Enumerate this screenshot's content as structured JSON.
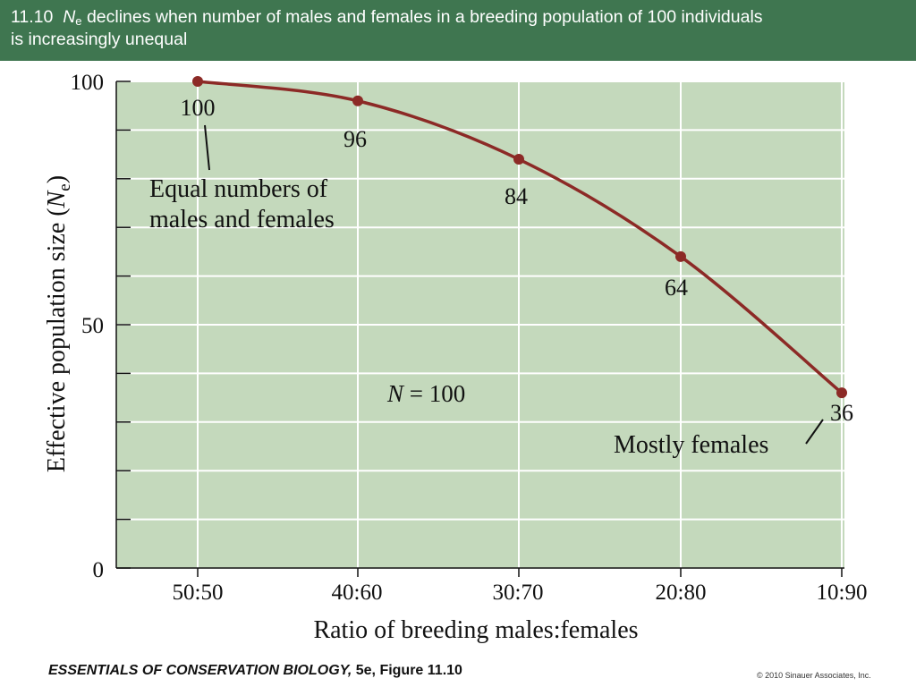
{
  "banner": {
    "figure_number": "11.10",
    "ne_letter": "N",
    "ne_sub": "e",
    "text_line1": "declines when number of males and females in a breeding population of 100 individuals",
    "text_line2": "is increasingly unequal"
  },
  "chart_data": {
    "type": "line",
    "categories": [
      "50:50",
      "40:60",
      "30:70",
      "20:80",
      "10:90"
    ],
    "values": [
      100,
      96,
      84,
      64,
      36
    ],
    "data_labels": [
      "100",
      "96",
      "84",
      "64",
      "36"
    ],
    "xlabel": "Ratio of breeding males:females",
    "ylabel_main": "Effective population size (",
    "ylabel_italic": "N",
    "ylabel_sub": "e",
    "ylabel_close": ")",
    "ylim": [
      0,
      100
    ],
    "yticks": [
      0,
      10,
      20,
      30,
      40,
      50,
      60,
      70,
      80,
      90,
      100
    ],
    "ytick_labels": [
      "0",
      "50",
      "100"
    ],
    "grid": true,
    "annotations": {
      "equal_line1": "Equal numbers of",
      "equal_line2": "males and females",
      "n_italic": "N",
      "n_rest": " = 100",
      "mostly": "Mostly females"
    },
    "colors": {
      "plot_bg": "#c4d9bc",
      "line": "#8c2a26",
      "grid": "#ffffff",
      "banner": "#3f7650"
    }
  },
  "footer": {
    "book_title": "ESSENTIALS OF CONSERVATION BIOLOGY,",
    "edition": "5e, Figure 11.10",
    "copyright": "© 2010 Sinauer Associates, Inc."
  }
}
